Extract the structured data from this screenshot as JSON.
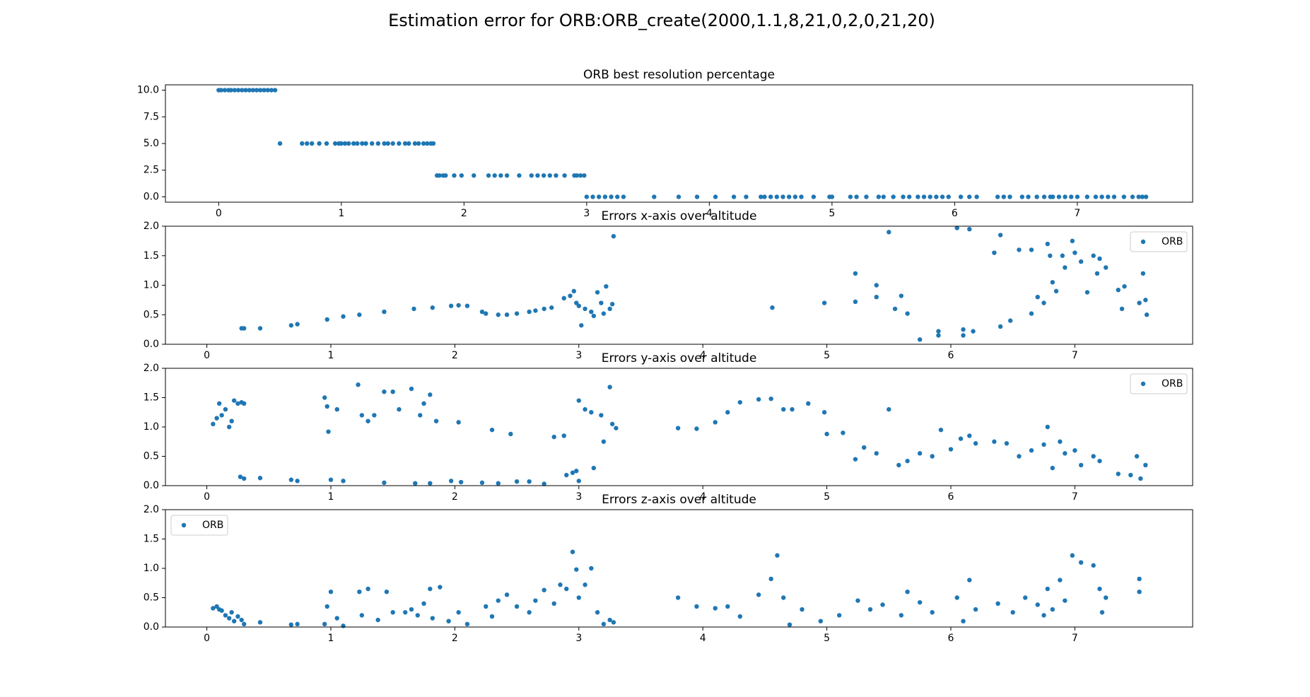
{
  "title": "Estimation error for ORB:ORB_create(2000,1.1,8,21,0,2,0,21,20)",
  "chart_data": [
    {
      "type": "scatter",
      "title": "ORB best resolution percentage",
      "xlim": [
        -0.434,
        7.94
      ],
      "ylim": [
        -0.5,
        10.5
      ],
      "xticks": [
        0,
        1,
        2,
        3,
        4,
        5,
        6,
        7
      ],
      "yticks": [
        {
          "value": 0,
          "label": "0.0"
        },
        {
          "value": 2.5,
          "label": "2.5"
        },
        {
          "value": 5,
          "label": "5.0"
        },
        {
          "value": 7.5,
          "label": "7.5"
        },
        {
          "value": 10,
          "label": "10.0"
        }
      ],
      "x": [
        0,
        0.02,
        0.05,
        0.08,
        0.1,
        0.13,
        0.16,
        0.19,
        0.22,
        0.25,
        0.28,
        0.31,
        0.34,
        0.37,
        0.4,
        0.43,
        0.46,
        0.5,
        0.68,
        0.72,
        0.76,
        0.82,
        0.88,
        0.95,
        0.98,
        1.0,
        1.03,
        1.06,
        1.1,
        1.13,
        1.17,
        1.2,
        1.25,
        1.3,
        1.35,
        1.38,
        1.42,
        1.47,
        1.52,
        1.55,
        1.6,
        1.63,
        1.67,
        1.7,
        1.73,
        1.75,
        1.78,
        1.8,
        1.83,
        1.85,
        1.92,
        1.98,
        2.08,
        2.2,
        2.25,
        2.3,
        2.35,
        2.45,
        2.55,
        2.6,
        2.65,
        2.7,
        2.75,
        2.82,
        2.9,
        2.92,
        2.95,
        2.98,
        3.0,
        3.05,
        3.1,
        3.15,
        3.2,
        3.25,
        3.3,
        3.55,
        3.75,
        3.9,
        4.05,
        4.2,
        4.3,
        4.42,
        4.45,
        4.5,
        4.55,
        4.6,
        4.65,
        4.7,
        4.75,
        4.85,
        4.98,
        5.0,
        5.15,
        5.2,
        5.28,
        5.38,
        5.42,
        5.5,
        5.58,
        5.63,
        5.7,
        5.75,
        5.8,
        5.85,
        5.9,
        5.95,
        6.05,
        6.12,
        6.18,
        6.35,
        6.4,
        6.45,
        6.55,
        6.6,
        6.67,
        6.73,
        6.78,
        6.8,
        6.85,
        6.9,
        6.95,
        7.0,
        7.08,
        7.15,
        7.2,
        7.25,
        7.3,
        7.38,
        7.45,
        7.5,
        7.53,
        7.56
      ],
      "series": [
        {
          "color": "#1f77b4",
          "values": [
            10,
            10,
            10,
            10,
            10,
            10,
            10,
            10,
            10,
            10,
            10,
            10,
            10,
            10,
            10,
            10,
            10,
            5,
            5,
            5,
            5,
            5,
            5,
            5,
            5,
            5,
            5,
            5,
            5,
            5,
            5,
            5,
            5,
            5,
            5,
            5,
            5,
            5,
            5,
            5,
            5,
            5,
            5,
            5,
            5,
            5,
            2,
            2,
            2,
            2,
            2,
            2,
            2,
            2,
            2,
            2,
            2,
            2,
            2,
            2,
            2,
            2,
            2,
            2,
            2,
            2,
            2,
            2,
            0,
            0,
            0,
            0,
            0,
            0,
            0,
            0,
            0,
            0,
            0,
            0,
            0,
            0,
            0,
            0,
            0,
            0,
            0,
            0,
            0,
            0,
            0,
            0,
            0,
            0,
            0,
            0,
            0,
            0,
            0,
            0,
            0,
            0,
            0,
            0,
            0,
            0,
            0,
            0,
            0,
            0,
            0,
            0,
            0,
            0,
            0,
            0,
            0,
            0,
            0,
            0,
            0,
            0,
            0,
            0,
            0,
            0,
            0,
            0,
            0,
            0,
            0,
            0
          ]
        }
      ]
    },
    {
      "type": "scatter",
      "title": "Errors x-axis over altitude",
      "legend": "upper right",
      "xlim": [
        -0.334,
        7.95
      ],
      "ylim": [
        0,
        2
      ],
      "xticks": [
        0,
        1,
        2,
        3,
        4,
        5,
        6,
        7
      ],
      "yticks": [
        {
          "value": 0,
          "label": "0.0"
        },
        {
          "value": 0.5,
          "label": "0.5"
        },
        {
          "value": 1,
          "label": "1.0"
        },
        {
          "value": 1.5,
          "label": "1.5"
        },
        {
          "value": 2,
          "label": "2.0"
        }
      ],
      "x": [
        0.28,
        0.3,
        0.43,
        0.68,
        0.73,
        0.97,
        1.1,
        1.23,
        1.43,
        1.67,
        1.82,
        1.97,
        2.03,
        2.1,
        2.22,
        2.25,
        2.35,
        2.42,
        2.5,
        2.6,
        2.65,
        2.72,
        2.78,
        2.88,
        2.93,
        2.96,
        2.98,
        3.0,
        3.02,
        3.05,
        3.1,
        3.12,
        3.15,
        3.18,
        3.2,
        3.22,
        3.25,
        3.27,
        3.28,
        4.56,
        4.98,
        5.23,
        5.23,
        5.4,
        5.4,
        5.5,
        5.55,
        5.6,
        5.65,
        5.75,
        5.9,
        5.9,
        6.05,
        6.1,
        6.1,
        6.15,
        6.18,
        6.35,
        6.4,
        6.4,
        6.48,
        6.55,
        6.65,
        6.65,
        6.7,
        6.75,
        6.78,
        6.8,
        6.82,
        6.85,
        6.9,
        6.92,
        6.98,
        7.0,
        7.05,
        7.1,
        7.15,
        7.18,
        7.2,
        7.25,
        7.35,
        7.38,
        7.4,
        7.52,
        7.55,
        7.57,
        7.58
      ],
      "series": [
        {
          "name": "ORB",
          "color": "#1f77b4",
          "values": [
            0.27,
            0.27,
            0.27,
            0.32,
            0.34,
            0.42,
            0.47,
            0.5,
            0.55,
            0.6,
            0.62,
            0.65,
            0.66,
            0.65,
            0.55,
            0.52,
            0.5,
            0.5,
            0.52,
            0.55,
            0.57,
            0.6,
            0.62,
            0.78,
            0.82,
            0.9,
            0.7,
            0.65,
            0.32,
            0.6,
            0.55,
            0.48,
            0.88,
            0.7,
            0.52,
            0.98,
            0.6,
            0.68,
            1.83,
            0.62,
            0.7,
            0.72,
            1.2,
            0.8,
            1.0,
            1.9,
            0.6,
            0.82,
            0.52,
            0.08,
            0.22,
            0.15,
            1.97,
            0.25,
            0.15,
            1.95,
            0.22,
            1.55,
            1.85,
            0.3,
            0.4,
            1.6,
            0.52,
            1.6,
            0.8,
            0.7,
            1.7,
            1.5,
            1.05,
            0.9,
            1.5,
            1.3,
            1.75,
            1.55,
            1.4,
            0.88,
            1.5,
            1.2,
            1.45,
            1.3,
            0.92,
            0.6,
            0.98,
            0.7,
            1.2,
            0.75,
            0.5
          ]
        }
      ]
    },
    {
      "type": "scatter",
      "title": "Errors y-axis over altitude",
      "legend": "upper right",
      "xlim": [
        -0.334,
        7.95
      ],
      "ylim": [
        0,
        2
      ],
      "xticks": [
        0,
        1,
        2,
        3,
        4,
        5,
        6,
        7
      ],
      "yticks": [
        {
          "value": 0,
          "label": "0.0"
        },
        {
          "value": 0.5,
          "label": "0.5"
        },
        {
          "value": 1,
          "label": "1.0"
        },
        {
          "value": 1.5,
          "label": "1.5"
        },
        {
          "value": 2,
          "label": "2.0"
        }
      ],
      "x": [
        0.05,
        0.08,
        0.1,
        0.12,
        0.15,
        0.18,
        0.2,
        0.22,
        0.25,
        0.28,
        0.3,
        0.27,
        0.3,
        0.43,
        0.68,
        0.73,
        0.95,
        0.97,
        0.98,
        1.0,
        1.05,
        1.1,
        1.22,
        1.25,
        1.3,
        1.35,
        1.43,
        1.43,
        1.5,
        1.55,
        1.65,
        1.68,
        1.72,
        1.75,
        1.8,
        1.8,
        1.85,
        1.97,
        2.03,
        2.05,
        2.22,
        2.3,
        2.35,
        2.45,
        2.5,
        2.6,
        2.72,
        2.8,
        2.88,
        2.9,
        2.95,
        2.98,
        3.0,
        3.0,
        3.05,
        3.1,
        3.12,
        3.18,
        3.2,
        3.25,
        3.27,
        3.3,
        3.8,
        3.95,
        4.1,
        4.2,
        4.3,
        4.45,
        4.55,
        4.65,
        4.72,
        4.85,
        4.98,
        5.0,
        5.13,
        5.23,
        5.3,
        5.4,
        5.5,
        5.58,
        5.65,
        5.75,
        5.85,
        5.92,
        6.0,
        6.08,
        6.15,
        6.2,
        6.35,
        6.45,
        6.55,
        6.65,
        6.75,
        6.78,
        6.82,
        6.88,
        6.92,
        7.0,
        7.05,
        7.15,
        7.2,
        7.35,
        7.45,
        7.5,
        7.53,
        7.57
      ],
      "series": [
        {
          "name": "ORB",
          "color": "#1f77b4",
          "values": [
            1.05,
            1.15,
            1.4,
            1.2,
            1.3,
            1.0,
            1.1,
            1.45,
            1.4,
            1.42,
            1.4,
            0.15,
            0.12,
            0.13,
            0.1,
            0.08,
            1.5,
            1.35,
            0.92,
            0.1,
            1.3,
            0.08,
            1.72,
            1.2,
            1.1,
            1.2,
            1.6,
            0.05,
            1.6,
            1.3,
            1.65,
            0.04,
            1.2,
            1.4,
            1.55,
            0.04,
            1.1,
            0.08,
            1.08,
            0.06,
            0.05,
            0.95,
            0.04,
            0.88,
            0.07,
            0.07,
            0.03,
            0.83,
            0.85,
            0.18,
            0.22,
            0.25,
            0.08,
            1.45,
            1.3,
            1.25,
            0.3,
            1.2,
            0.75,
            1.68,
            1.05,
            0.98,
            0.98,
            0.97,
            1.08,
            1.25,
            1.42,
            1.47,
            1.48,
            1.3,
            1.3,
            1.4,
            1.25,
            0.88,
            0.9,
            0.45,
            0.65,
            0.55,
            1.3,
            0.35,
            0.42,
            0.55,
            0.5,
            0.95,
            0.62,
            0.8,
            0.85,
            0.72,
            0.75,
            0.72,
            0.5,
            0.6,
            0.7,
            1.0,
            0.3,
            0.75,
            0.55,
            0.6,
            0.35,
            0.5,
            0.42,
            0.2,
            0.18,
            0.5,
            0.12,
            0.35
          ]
        }
      ]
    },
    {
      "type": "scatter",
      "title": "Errors z-axis over altitude",
      "legend": "upper left",
      "xlim": [
        -0.334,
        7.95
      ],
      "ylim": [
        0,
        2
      ],
      "xticks": [
        0,
        1,
        2,
        3,
        4,
        5,
        6,
        7
      ],
      "yticks": [
        {
          "value": 0,
          "label": "0.0"
        },
        {
          "value": 0.5,
          "label": "0.5"
        },
        {
          "value": 1,
          "label": "1.0"
        },
        {
          "value": 1.5,
          "label": "1.5"
        },
        {
          "value": 2,
          "label": "2.0"
        }
      ],
      "x": [
        0.05,
        0.08,
        0.1,
        0.12,
        0.15,
        0.18,
        0.2,
        0.22,
        0.25,
        0.28,
        0.3,
        0.43,
        0.68,
        0.73,
        0.95,
        0.97,
        1.0,
        1.05,
        1.1,
        1.23,
        1.25,
        1.3,
        1.38,
        1.45,
        1.5,
        1.6,
        1.65,
        1.7,
        1.75,
        1.8,
        1.82,
        1.88,
        1.95,
        2.03,
        2.1,
        2.25,
        2.3,
        2.35,
        2.42,
        2.5,
        2.6,
        2.65,
        2.72,
        2.8,
        2.85,
        2.9,
        2.95,
        2.98,
        3.0,
        3.05,
        3.1,
        3.15,
        3.2,
        3.25,
        3.28,
        3.8,
        3.95,
        4.1,
        4.2,
        4.3,
        4.45,
        4.55,
        4.6,
        4.65,
        4.7,
        4.8,
        4.95,
        5.1,
        5.25,
        5.35,
        5.45,
        5.6,
        5.65,
        5.75,
        5.85,
        6.05,
        6.1,
        6.15,
        6.2,
        6.38,
        6.5,
        6.6,
        6.7,
        6.75,
        6.78,
        6.82,
        6.88,
        6.92,
        6.98,
        7.05,
        7.15,
        7.2,
        7.22,
        7.25,
        7.52,
        7.52
      ],
      "series": [
        {
          "name": "ORB",
          "color": "#1f77b4",
          "values": [
            0.32,
            0.35,
            0.3,
            0.28,
            0.2,
            0.15,
            0.25,
            0.1,
            0.18,
            0.12,
            0.05,
            0.08,
            0.04,
            0.05,
            0.05,
            0.35,
            0.6,
            0.15,
            0.02,
            0.6,
            0.2,
            0.65,
            0.12,
            0.6,
            0.25,
            0.25,
            0.3,
            0.2,
            0.4,
            0.65,
            0.15,
            0.68,
            0.1,
            0.25,
            0.05,
            0.35,
            0.18,
            0.45,
            0.55,
            0.35,
            0.25,
            0.45,
            0.63,
            0.4,
            0.72,
            0.65,
            1.28,
            0.98,
            0.5,
            0.72,
            1.0,
            0.25,
            0.05,
            0.12,
            0.08,
            0.5,
            0.35,
            0.32,
            0.35,
            0.18,
            0.55,
            0.82,
            1.22,
            0.5,
            0.04,
            0.3,
            0.1,
            0.2,
            0.45,
            0.3,
            0.38,
            0.2,
            0.6,
            0.42,
            0.25,
            0.5,
            0.1,
            0.8,
            0.3,
            0.4,
            0.25,
            0.5,
            0.38,
            0.2,
            0.65,
            0.3,
            0.8,
            0.45,
            1.22,
            1.1,
            1.05,
            0.65,
            0.25,
            0.5,
            0.82,
            0.6
          ]
        }
      ]
    }
  ]
}
